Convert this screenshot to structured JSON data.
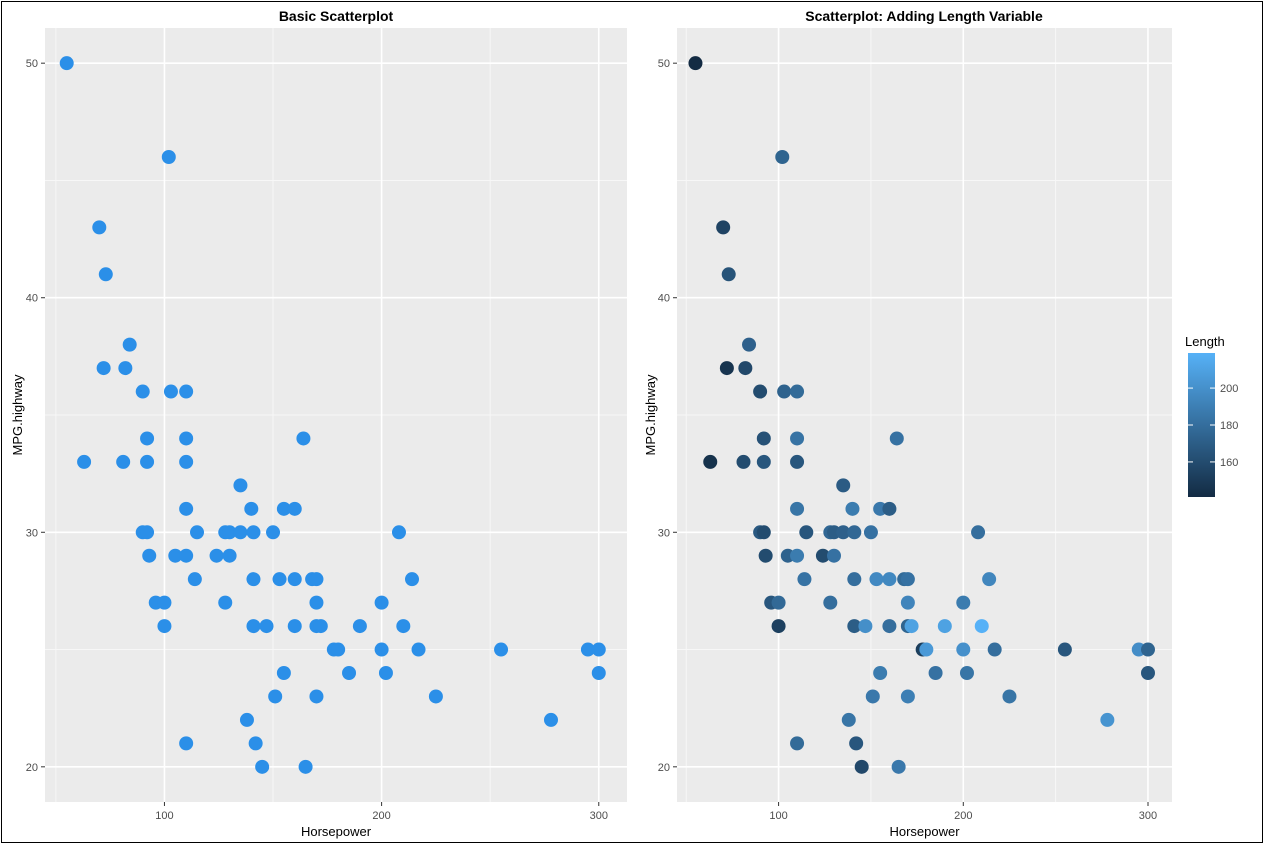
{
  "chart_data": [
    {
      "type": "scatter",
      "title": "Basic Scatterplot",
      "xlabel": "Horsepower",
      "ylabel": "MPG.highway",
      "xlim": [
        45,
        313
      ],
      "ylim": [
        18.5,
        51.5
      ],
      "xticks": [
        100,
        200,
        300
      ],
      "yticks": [
        20,
        30,
        40,
        50
      ],
      "point_color": "#2b8fe8",
      "panel_background": "#ebebeb",
      "grid": true,
      "points": [
        [
          55,
          50
        ],
        [
          102,
          46
        ],
        [
          70,
          43
        ],
        [
          73,
          41
        ],
        [
          84,
          38
        ],
        [
          72,
          37
        ],
        [
          82,
          37
        ],
        [
          90,
          36
        ],
        [
          103,
          36
        ],
        [
          110,
          36
        ],
        [
          92,
          34
        ],
        [
          110,
          34
        ],
        [
          164,
          34
        ],
        [
          63,
          33
        ],
        [
          81,
          33
        ],
        [
          92,
          33
        ],
        [
          110,
          33
        ],
        [
          135,
          32
        ],
        [
          110,
          31
        ],
        [
          140,
          31
        ],
        [
          155,
          31
        ],
        [
          160,
          31
        ],
        [
          90,
          30
        ],
        [
          92,
          30
        ],
        [
          115,
          30
        ],
        [
          128,
          30
        ],
        [
          130,
          30
        ],
        [
          135,
          30
        ],
        [
          141,
          30
        ],
        [
          150,
          30
        ],
        [
          208,
          30
        ],
        [
          93,
          29
        ],
        [
          105,
          29
        ],
        [
          110,
          29
        ],
        [
          124,
          29
        ],
        [
          130,
          29
        ],
        [
          114,
          28
        ],
        [
          141,
          28
        ],
        [
          153,
          28
        ],
        [
          160,
          28
        ],
        [
          168,
          28
        ],
        [
          170,
          28
        ],
        [
          214,
          28
        ],
        [
          96,
          27
        ],
        [
          100,
          27
        ],
        [
          128,
          27
        ],
        [
          170,
          27
        ],
        [
          200,
          27
        ],
        [
          100,
          26
        ],
        [
          141,
          26
        ],
        [
          147,
          26
        ],
        [
          160,
          26
        ],
        [
          170,
          26
        ],
        [
          172,
          26
        ],
        [
          190,
          26
        ],
        [
          210,
          26
        ],
        [
          178,
          25
        ],
        [
          180,
          25
        ],
        [
          200,
          25
        ],
        [
          217,
          25
        ],
        [
          255,
          25
        ],
        [
          295,
          25
        ],
        [
          300,
          25
        ],
        [
          155,
          24
        ],
        [
          185,
          24
        ],
        [
          202,
          24
        ],
        [
          300,
          24
        ],
        [
          151,
          23
        ],
        [
          170,
          23
        ],
        [
          225,
          23
        ],
        [
          138,
          22
        ],
        [
          278,
          22
        ],
        [
          110,
          21
        ],
        [
          142,
          21
        ],
        [
          145,
          20
        ],
        [
          165,
          20
        ]
      ]
    },
    {
      "type": "scatter",
      "title": "Scatterplot: Adding Length Variable",
      "xlabel": "Horsepower",
      "ylabel": "MPG.highway",
      "xlim": [
        45,
        313
      ],
      "ylim": [
        18.5,
        51.5
      ],
      "xticks": [
        100,
        200,
        300
      ],
      "yticks": [
        20,
        30,
        40,
        50
      ],
      "panel_background": "#ebebeb",
      "grid": true,
      "color_variable": "Length",
      "color_range": [
        141,
        219
      ],
      "color_low": "#132b43",
      "color_high": "#56b1f7",
      "legend_ticks": [
        160,
        180,
        200
      ],
      "legend_position": "right",
      "points": [
        [
          55,
          50,
          141
        ],
        [
          102,
          46,
          174
        ],
        [
          70,
          43,
          155
        ],
        [
          73,
          41,
          164
        ],
        [
          84,
          38,
          172
        ],
        [
          72,
          37,
          146
        ],
        [
          82,
          37,
          158
        ],
        [
          90,
          36,
          160
        ],
        [
          103,
          36,
          173
        ],
        [
          110,
          36,
          178
        ],
        [
          92,
          34,
          163
        ],
        [
          110,
          34,
          183
        ],
        [
          164,
          34,
          182
        ],
        [
          63,
          33,
          145
        ],
        [
          81,
          33,
          160
        ],
        [
          92,
          33,
          166
        ],
        [
          110,
          33,
          166
        ],
        [
          135,
          32,
          169
        ],
        [
          110,
          31,
          184
        ],
        [
          140,
          31,
          188
        ],
        [
          155,
          31,
          186
        ],
        [
          160,
          31,
          170
        ],
        [
          90,
          30,
          168
        ],
        [
          92,
          30,
          160
        ],
        [
          115,
          30,
          166
        ],
        [
          128,
          30,
          176
        ],
        [
          130,
          30,
          170
        ],
        [
          135,
          30,
          172
        ],
        [
          141,
          30,
          176
        ],
        [
          150,
          30,
          182
        ],
        [
          208,
          30,
          180
        ],
        [
          93,
          29,
          160
        ],
        [
          105,
          29,
          173
        ],
        [
          110,
          29,
          188
        ],
        [
          124,
          29,
          160
        ],
        [
          130,
          29,
          182
        ],
        [
          114,
          28,
          183
        ],
        [
          141,
          28,
          180
        ],
        [
          153,
          28,
          196
        ],
        [
          160,
          28,
          195
        ],
        [
          168,
          28,
          178
        ],
        [
          170,
          28,
          182
        ],
        [
          214,
          28,
          194
        ],
        [
          96,
          27,
          166
        ],
        [
          100,
          27,
          177
        ],
        [
          128,
          27,
          180
        ],
        [
          170,
          27,
          193
        ],
        [
          200,
          27,
          188
        ],
        [
          100,
          26,
          153
        ],
        [
          141,
          26,
          170
        ],
        [
          147,
          26,
          199
        ],
        [
          160,
          26,
          180
        ],
        [
          170,
          26,
          174
        ],
        [
          172,
          26,
          210
        ],
        [
          190,
          26,
          210
        ],
        [
          210,
          26,
          219
        ],
        [
          178,
          25,
          152
        ],
        [
          180,
          25,
          205
        ],
        [
          200,
          25,
          200
        ],
        [
          217,
          25,
          180
        ],
        [
          255,
          25,
          166
        ],
        [
          295,
          25,
          198
        ],
        [
          300,
          25,
          174
        ],
        [
          155,
          24,
          188
        ],
        [
          185,
          24,
          182
        ],
        [
          202,
          24,
          184
        ],
        [
          300,
          24,
          166
        ],
        [
          151,
          23,
          186
        ],
        [
          170,
          23,
          190
        ],
        [
          225,
          23,
          184
        ],
        [
          138,
          22,
          184
        ],
        [
          278,
          22,
          202
        ],
        [
          110,
          21,
          178
        ],
        [
          142,
          21,
          166
        ],
        [
          145,
          20,
          158
        ],
        [
          165,
          20,
          186
        ]
      ]
    }
  ]
}
